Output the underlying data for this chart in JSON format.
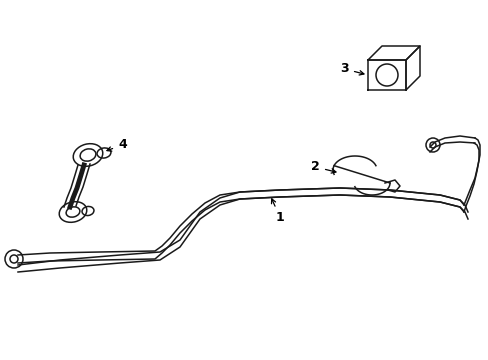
{
  "background_color": "#ffffff",
  "line_color": "#1a1a1a",
  "text_color": "#000000",
  "label_fontsize": 9,
  "figsize": [
    4.89,
    3.6
  ],
  "dpi": 100,
  "arrow_color": "#000000"
}
